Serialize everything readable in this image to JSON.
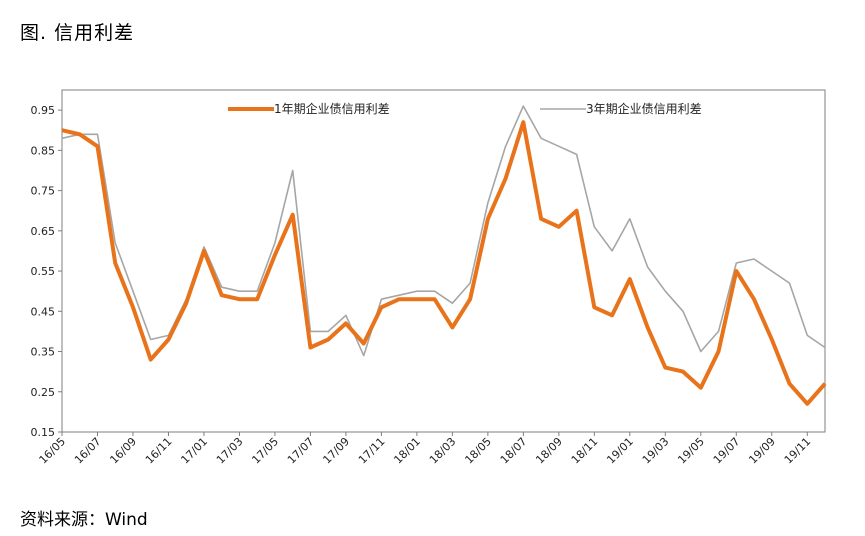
{
  "figure_title": "图.  信用利差",
  "source": "资料来源：Wind",
  "chart_data": {
    "type": "line",
    "title": "",
    "xlabel": "",
    "ylabel": "",
    "ylim": [
      0.15,
      1.0
    ],
    "yticks": [
      "0.95",
      "0.85",
      "0.75",
      "0.65",
      "0.55",
      "0.45",
      "0.35",
      "0.25",
      "0.15"
    ],
    "yticks_values": [
      0.95,
      0.85,
      0.75,
      0.65,
      0.55,
      0.45,
      0.35,
      0.25,
      0.15
    ],
    "xticks": [
      "16/05",
      "16/07",
      "16/09",
      "16/11",
      "17/01",
      "17/03",
      "17/05",
      "17/07",
      "17/09",
      "17/11",
      "18/01",
      "18/03",
      "18/05",
      "18/07",
      "18/09",
      "18/11",
      "19/01",
      "19/03",
      "19/05",
      "19/07",
      "19/09",
      "19/11"
    ],
    "x_range": [
      "2016-05",
      "2019-12"
    ],
    "grid": false,
    "legend_position": "top",
    "series": [
      {
        "name": "1年期企业债信用利差",
        "color": "#E8731A",
        "x": [
          "2016-05",
          "2016-06",
          "2016-07",
          "2016-08",
          "2016-09",
          "2016-10",
          "2016-11",
          "2016-12",
          "2017-01",
          "2017-02",
          "2017-03",
          "2017-04",
          "2017-05",
          "2017-06",
          "2017-07",
          "2017-08",
          "2017-09",
          "2017-10",
          "2017-11",
          "2017-12",
          "2018-01",
          "2018-02",
          "2018-03",
          "2018-04",
          "2018-05",
          "2018-06",
          "2018-07",
          "2018-08",
          "2018-09",
          "2018-10",
          "2018-11",
          "2018-12",
          "2019-01",
          "2019-02",
          "2019-03",
          "2019-04",
          "2019-05",
          "2019-06",
          "2019-07",
          "2019-08",
          "2019-09",
          "2019-10",
          "2019-11",
          "2019-12"
        ],
        "values": [
          0.9,
          0.89,
          0.86,
          0.57,
          0.46,
          0.33,
          0.38,
          0.47,
          0.6,
          0.49,
          0.48,
          0.48,
          0.59,
          0.69,
          0.36,
          0.38,
          0.42,
          0.37,
          0.46,
          0.48,
          0.48,
          0.48,
          0.41,
          0.48,
          0.68,
          0.78,
          0.92,
          0.68,
          0.66,
          0.7,
          0.46,
          0.44,
          0.53,
          0.41,
          0.31,
          0.3,
          0.26,
          0.35,
          0.55,
          0.48,
          0.38,
          0.27,
          0.22,
          0.27
        ]
      },
      {
        "name": "3年期企业债信用利差",
        "color": "#A6A6A6",
        "x": [
          "2016-05",
          "2016-06",
          "2016-07",
          "2016-08",
          "2016-09",
          "2016-10",
          "2016-11",
          "2016-12",
          "2017-01",
          "2017-02",
          "2017-03",
          "2017-04",
          "2017-05",
          "2017-06",
          "2017-07",
          "2017-08",
          "2017-09",
          "2017-10",
          "2017-11",
          "2017-12",
          "2018-01",
          "2018-02",
          "2018-03",
          "2018-04",
          "2018-05",
          "2018-06",
          "2018-07",
          "2018-08",
          "2018-09",
          "2018-10",
          "2018-11",
          "2018-12",
          "2019-01",
          "2019-02",
          "2019-03",
          "2019-04",
          "2019-05",
          "2019-06",
          "2019-07",
          "2019-08",
          "2019-09",
          "2019-10",
          "2019-11",
          "2019-12"
        ],
        "values": [
          0.88,
          0.89,
          0.89,
          0.62,
          0.5,
          0.38,
          0.39,
          0.48,
          0.61,
          0.51,
          0.5,
          0.5,
          0.62,
          0.8,
          0.4,
          0.4,
          0.44,
          0.34,
          0.48,
          0.49,
          0.5,
          0.5,
          0.47,
          0.52,
          0.72,
          0.86,
          0.96,
          0.88,
          0.86,
          0.84,
          0.66,
          0.6,
          0.68,
          0.56,
          0.5,
          0.45,
          0.35,
          0.4,
          0.57,
          0.58,
          0.55,
          0.52,
          0.39,
          0.36
        ]
      }
    ]
  }
}
